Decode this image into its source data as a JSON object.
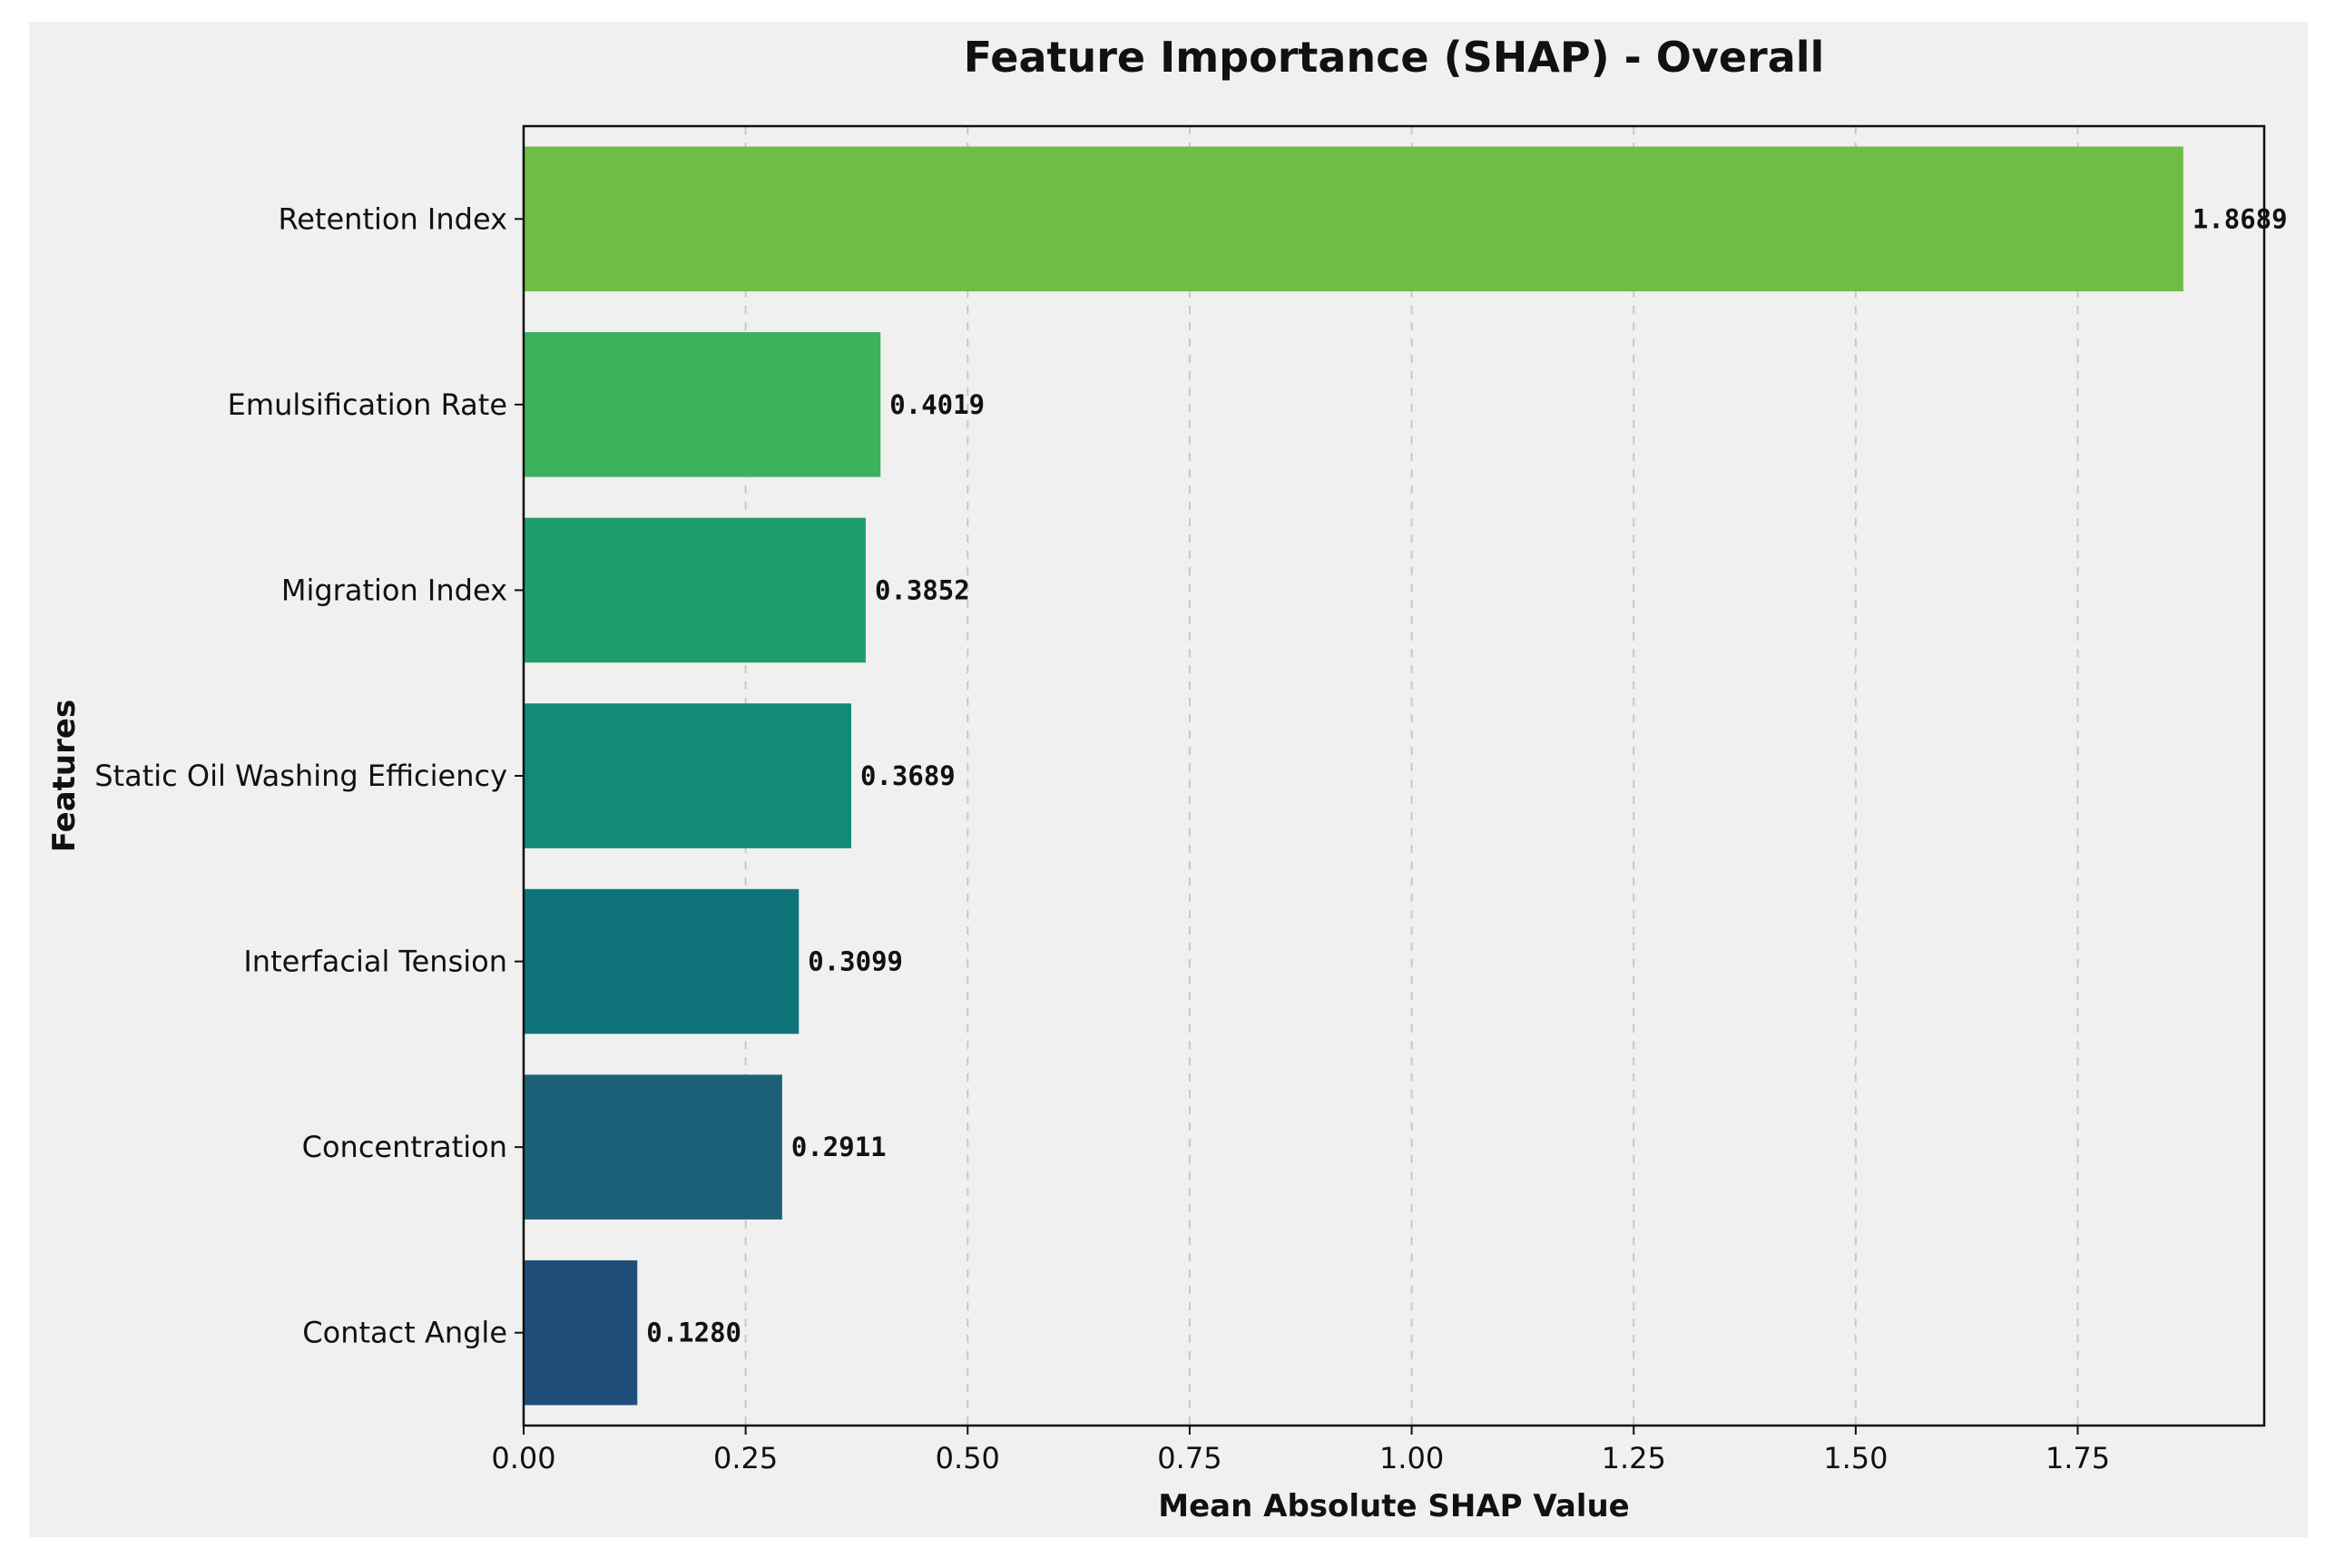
{
  "chart_data": {
    "type": "bar",
    "orientation": "horizontal",
    "title": "Feature Importance (SHAP) - Overall",
    "xlabel": "Mean Absolute SHAP Value",
    "ylabel": "Features",
    "xlim": [
      0,
      1.96
    ],
    "xticks": [
      {
        "value": 0.0,
        "label": "0.00"
      },
      {
        "value": 0.25,
        "label": "0.25"
      },
      {
        "value": 0.5,
        "label": "0.50"
      },
      {
        "value": 0.75,
        "label": "0.75"
      },
      {
        "value": 1.0,
        "label": "1.00"
      },
      {
        "value": 1.25,
        "label": "1.25"
      },
      {
        "value": 1.5,
        "label": "1.50"
      },
      {
        "value": 1.75,
        "label": "1.75"
      }
    ],
    "grid": {
      "x": true,
      "y": false,
      "style": "dashed"
    },
    "categories": [
      "Retention Index",
      "Emulsification Rate",
      "Migration Index",
      "Static Oil Washing Efficiency",
      "Interfacial Tension",
      "Concentration",
      "Contact Angle"
    ],
    "values": [
      1.8689,
      0.4019,
      0.3852,
      0.3689,
      0.3099,
      0.2911,
      0.128
    ],
    "value_labels": [
      "1.8689",
      "0.4019",
      "0.3852",
      "0.3689",
      "0.3099",
      "0.2911",
      "0.1280"
    ],
    "colors": [
      "#6fbd45",
      "#3bb25b",
      "#1f9e6d",
      "#128a78",
      "#0e7479",
      "#1d6179",
      "#1f4e7b"
    ],
    "background": "#f0f0f0"
  }
}
